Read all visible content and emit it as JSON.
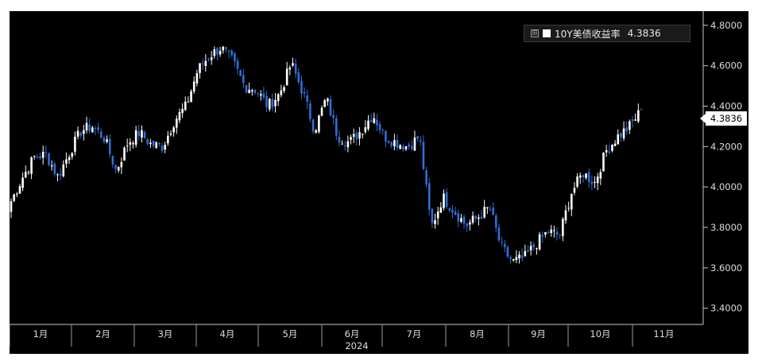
{
  "chart_data": {
    "type": "candlestick",
    "series_name": "10Y美债收益率",
    "last_value_label": "4.3836",
    "y_ticks": [
      "4.8000",
      "4.6000",
      "4.4000",
      "4.2000",
      "4.0000",
      "3.8000",
      "3.6000",
      "3.4000"
    ],
    "y_tick_values": [
      4.8,
      4.6,
      4.4,
      4.2,
      4.0,
      3.8,
      3.6,
      3.4
    ],
    "ylim": [
      3.32,
      4.87
    ],
    "x_months": [
      "1月",
      "2月",
      "3月",
      "4月",
      "5月",
      "6月",
      "7月",
      "8月",
      "9月",
      "10月",
      "11月"
    ],
    "x_year": "2024",
    "legend_placement": "top-right",
    "colors": {
      "up": "#ffffff",
      "down": "#2f6fd6",
      "background": "#000000",
      "axis": "#c8c8c8"
    },
    "weekly_close": [
      3.93,
      4.05,
      4.15,
      4.16,
      4.05,
      4.17,
      4.28,
      4.3,
      4.24,
      4.08,
      4.22,
      4.27,
      4.21,
      4.2,
      4.33,
      4.4,
      4.58,
      4.65,
      4.69,
      4.62,
      4.5,
      4.48,
      4.4,
      4.46,
      4.61,
      4.47,
      4.28,
      4.44,
      4.25,
      4.22,
      4.28,
      4.36,
      4.25,
      4.22,
      4.2,
      4.25,
      3.8,
      3.95,
      3.88,
      3.81,
      3.85,
      3.9,
      3.7,
      3.63,
      3.65,
      3.72,
      3.78,
      3.76,
      3.97,
      4.07,
      4.02,
      4.18,
      4.25,
      4.3,
      4.38
    ]
  }
}
